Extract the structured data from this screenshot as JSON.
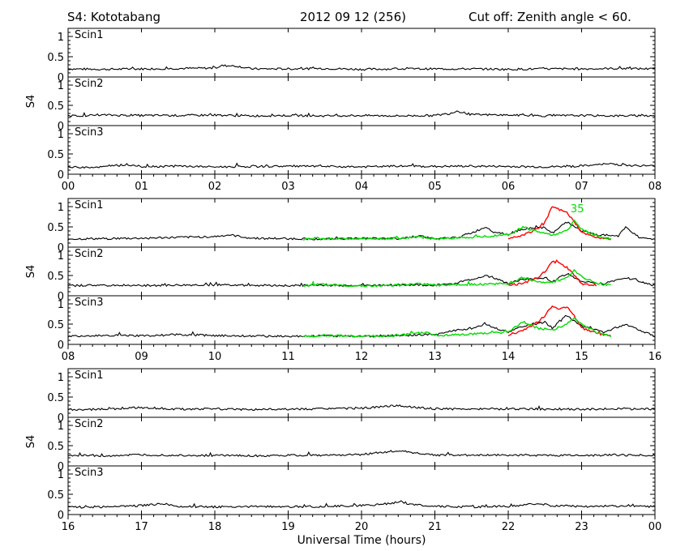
{
  "header": {
    "station": "S4: Kototabang",
    "date": "2012 09 12 (256)",
    "cutoff": "Cut off: Zenith angle < 60."
  },
  "colors": {
    "trace": "#000000",
    "highlight_red": "#ff0000",
    "highlight_green": "#00dd00"
  },
  "chart_data": [
    {
      "type": "line",
      "group": 1,
      "ylabel": "S4",
      "xlabel": "",
      "x_ticks": [
        "00",
        "01",
        "02",
        "03",
        "04",
        "05",
        "06",
        "07",
        "08"
      ],
      "xlim_hours": [
        0,
        8
      ],
      "ylim": [
        0,
        1.2
      ],
      "y_ticks": [
        "0",
        "0.5",
        "1"
      ],
      "panels": [
        {
          "label": "Scin1",
          "series": [
            {
              "color": "black",
              "x": [
                0,
                0.5,
                1,
                1.5,
                2,
                2.1,
                2.3,
                2.5,
                3,
                3.5,
                4,
                4.5,
                5,
                5.5,
                6,
                6.5,
                7,
                7.5,
                8
              ],
              "y": [
                0.2,
                0.19,
                0.2,
                0.21,
                0.22,
                0.28,
                0.27,
                0.2,
                0.2,
                0.21,
                0.19,
                0.2,
                0.2,
                0.2,
                0.19,
                0.2,
                0.2,
                0.21,
                0.2
              ]
            }
          ]
        },
        {
          "label": "Scin2",
          "series": [
            {
              "color": "black",
              "x": [
                0,
                0.5,
                1,
                1.5,
                2,
                2.5,
                3,
                3.5,
                4,
                4.5,
                5,
                5.2,
                5.3,
                5.5,
                6,
                6.5,
                7,
                7.5,
                8
              ],
              "y": [
                0.24,
                0.26,
                0.25,
                0.25,
                0.26,
                0.24,
                0.25,
                0.24,
                0.25,
                0.24,
                0.25,
                0.3,
                0.36,
                0.27,
                0.26,
                0.24,
                0.25,
                0.24,
                0.25
              ]
            }
          ]
        },
        {
          "label": "Scin3",
          "series": [
            {
              "color": "black",
              "x": [
                0,
                0.5,
                0.8,
                1,
                1.5,
                2,
                2.5,
                3,
                3.5,
                4,
                4.5,
                5,
                5.5,
                6,
                6.5,
                7,
                7.4,
                7.6,
                8
              ],
              "y": [
                0.17,
                0.18,
                0.24,
                0.19,
                0.2,
                0.18,
                0.19,
                0.2,
                0.19,
                0.18,
                0.2,
                0.19,
                0.2,
                0.19,
                0.18,
                0.2,
                0.26,
                0.22,
                0.2
              ]
            }
          ]
        }
      ]
    },
    {
      "type": "line",
      "group": 2,
      "ylabel": "S4",
      "xlabel": "",
      "x_ticks": [
        "08",
        "09",
        "10",
        "11",
        "12",
        "13",
        "14",
        "15",
        "16"
      ],
      "xlim_hours": [
        8,
        16
      ],
      "ylim": [
        0,
        1.2
      ],
      "y_ticks": [
        "0",
        "0.5",
        "1"
      ],
      "annotation": {
        "text": "35",
        "color": "green"
      },
      "panels": [
        {
          "label": "Scin1",
          "series": [
            {
              "color": "black",
              "x": [
                8,
                8.5,
                9,
                9.5,
                10,
                10.2,
                10.5,
                11,
                11.5,
                12,
                12.5,
                12.8,
                13,
                13.3,
                13.5,
                13.7,
                13.8,
                14,
                14.2,
                14.5,
                14.6,
                14.8,
                15,
                15.2,
                15.5,
                15.6,
                15.8,
                16
              ],
              "y": [
                0.2,
                0.21,
                0.22,
                0.24,
                0.26,
                0.3,
                0.22,
                0.21,
                0.2,
                0.22,
                0.21,
                0.28,
                0.2,
                0.24,
                0.35,
                0.5,
                0.38,
                0.32,
                0.45,
                0.48,
                0.35,
                0.62,
                0.4,
                0.3,
                0.28,
                0.5,
                0.22,
                0.2
              ]
            },
            {
              "color": "red",
              "x": [
                14,
                14.2,
                14.4,
                14.5,
                14.6,
                14.7,
                14.8,
                14.9,
                15,
                15.2,
                15.4
              ],
              "y": [
                0.22,
                0.3,
                0.45,
                0.6,
                1.0,
                0.92,
                0.85,
                0.62,
                0.35,
                0.25,
                0.2
              ]
            },
            {
              "color": "green",
              "x": [
                11.2,
                11.4,
                11.6,
                11.8,
                12,
                12.2,
                12.5,
                12.8,
                13,
                13.5,
                14,
                14.2,
                14.4,
                14.6,
                14.8,
                14.9,
                15,
                15.2,
                15.4
              ],
              "y": [
                0.2,
                0.22,
                0.2,
                0.21,
                0.2,
                0.2,
                0.22,
                0.25,
                0.2,
                0.25,
                0.3,
                0.5,
                0.38,
                0.3,
                0.4,
                0.65,
                0.45,
                0.28,
                0.2
              ]
            }
          ]
        },
        {
          "label": "Scin2",
          "series": [
            {
              "color": "black",
              "x": [
                8,
                8.5,
                9,
                9.5,
                10,
                10.5,
                11,
                11.5,
                12,
                12.5,
                13,
                13.3,
                13.5,
                13.7,
                13.9,
                14,
                14.2,
                14.5,
                14.6,
                14.8,
                15,
                15.3,
                15.6,
                16
              ],
              "y": [
                0.25,
                0.26,
                0.25,
                0.26,
                0.27,
                0.26,
                0.25,
                0.26,
                0.25,
                0.27,
                0.26,
                0.32,
                0.4,
                0.5,
                0.38,
                0.3,
                0.4,
                0.45,
                0.35,
                0.55,
                0.35,
                0.3,
                0.45,
                0.25
              ]
            },
            {
              "color": "red",
              "x": [
                14,
                14.2,
                14.4,
                14.5,
                14.6,
                14.7,
                14.8,
                14.9,
                15,
                15.2
              ],
              "y": [
                0.26,
                0.3,
                0.45,
                0.6,
                0.85,
                0.8,
                0.7,
                0.5,
                0.3,
                0.26
              ]
            },
            {
              "color": "green",
              "x": [
                11.2,
                11.5,
                11.8,
                12.2,
                12.5,
                12.8,
                13,
                13.5,
                14,
                14.2,
                14.4,
                14.6,
                14.8,
                14.9,
                15,
                15.2,
                15.4
              ],
              "y": [
                0.25,
                0.28,
                0.25,
                0.24,
                0.26,
                0.3,
                0.26,
                0.28,
                0.3,
                0.45,
                0.35,
                0.32,
                0.45,
                0.62,
                0.48,
                0.3,
                0.26
              ]
            }
          ]
        },
        {
          "label": "Scin3",
          "series": [
            {
              "color": "black",
              "x": [
                8,
                8.5,
                9,
                9.5,
                10,
                10.5,
                11,
                11.5,
                12,
                12.5,
                13,
                13.3,
                13.5,
                13.7,
                13.9,
                14,
                14.2,
                14.5,
                14.6,
                14.8,
                15,
                15.3,
                15.6,
                16
              ],
              "y": [
                0.2,
                0.22,
                0.21,
                0.24,
                0.22,
                0.21,
                0.2,
                0.21,
                0.2,
                0.22,
                0.24,
                0.35,
                0.4,
                0.5,
                0.35,
                0.3,
                0.45,
                0.55,
                0.4,
                0.72,
                0.45,
                0.3,
                0.5,
                0.2
              ]
            },
            {
              "color": "red",
              "x": [
                14,
                14.2,
                14.4,
                14.5,
                14.6,
                14.7,
                14.8,
                14.9,
                15,
                15.2,
                15.4
              ],
              "y": [
                0.22,
                0.35,
                0.55,
                0.7,
                0.95,
                0.88,
                0.92,
                0.7,
                0.4,
                0.28,
                0.2
              ]
            },
            {
              "color": "green",
              "x": [
                11.2,
                11.5,
                11.8,
                12.2,
                12.5,
                12.9,
                13,
                13.5,
                14,
                14.2,
                14.4,
                14.6,
                14.8,
                14.9,
                15,
                15.2,
                15.4
              ],
              "y": [
                0.2,
                0.22,
                0.21,
                0.2,
                0.22,
                0.3,
                0.22,
                0.25,
                0.3,
                0.55,
                0.4,
                0.35,
                0.5,
                0.65,
                0.5,
                0.3,
                0.2
              ]
            }
          ]
        }
      ]
    },
    {
      "type": "line",
      "group": 3,
      "ylabel": "S4",
      "xlabel": "Universal Time (hours)",
      "x_ticks": [
        "16",
        "17",
        "18",
        "19",
        "20",
        "21",
        "22",
        "23",
        "00"
      ],
      "xlim_hours": [
        16,
        24
      ],
      "ylim": [
        0,
        1.2
      ],
      "y_ticks": [
        "0",
        "0.5",
        "1"
      ],
      "panels": [
        {
          "label": "Scin1",
          "series": [
            {
              "color": "black",
              "x": [
                16,
                16.5,
                17,
                17.5,
                18,
                18.5,
                19,
                19.5,
                20,
                20.3,
                20.5,
                20.7,
                21,
                21.5,
                22,
                22.5,
                23,
                23.5,
                24
              ],
              "y": [
                0.19,
                0.2,
                0.24,
                0.2,
                0.21,
                0.19,
                0.2,
                0.21,
                0.22,
                0.26,
                0.3,
                0.25,
                0.21,
                0.2,
                0.21,
                0.2,
                0.2,
                0.21,
                0.2
              ]
            }
          ]
        },
        {
          "label": "Scin2",
          "series": [
            {
              "color": "black",
              "x": [
                16,
                16.5,
                17,
                17.5,
                18,
                18.5,
                19,
                19.5,
                20,
                20.3,
                20.5,
                20.7,
                21,
                21.5,
                22,
                22.5,
                23,
                23.5,
                24
              ],
              "y": [
                0.26,
                0.25,
                0.27,
                0.26,
                0.26,
                0.25,
                0.26,
                0.27,
                0.28,
                0.34,
                0.38,
                0.32,
                0.27,
                0.26,
                0.27,
                0.26,
                0.26,
                0.27,
                0.26
              ]
            }
          ]
        },
        {
          "label": "Scin3",
          "series": [
            {
              "color": "black",
              "x": [
                16,
                16.5,
                17,
                17.3,
                17.5,
                18,
                18.5,
                19,
                19.5,
                20,
                20.3,
                20.5,
                20.7,
                21,
                21.5,
                22,
                22.4,
                22.6,
                23,
                23.5,
                24
              ],
              "y": [
                0.18,
                0.19,
                0.22,
                0.27,
                0.2,
                0.19,
                0.2,
                0.19,
                0.2,
                0.22,
                0.26,
                0.3,
                0.25,
                0.2,
                0.19,
                0.2,
                0.27,
                0.22,
                0.2,
                0.21,
                0.2
              ]
            }
          ]
        }
      ]
    }
  ]
}
